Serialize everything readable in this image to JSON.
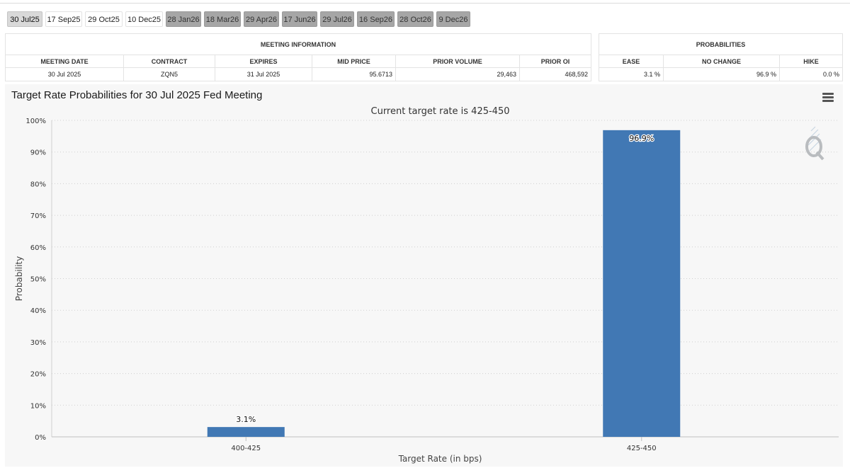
{
  "tabs": [
    {
      "label": "30 Jul25",
      "state": "active"
    },
    {
      "label": "17 Sep25",
      "state": "near"
    },
    {
      "label": "29 Oct25",
      "state": "near"
    },
    {
      "label": "10 Dec25",
      "state": "near"
    },
    {
      "label": "28 Jan26",
      "state": "far"
    },
    {
      "label": "18 Mar26",
      "state": "far"
    },
    {
      "label": "29 Apr26",
      "state": "far"
    },
    {
      "label": "17 Jun26",
      "state": "far"
    },
    {
      "label": "29 Jul26",
      "state": "far"
    },
    {
      "label": "16 Sep26",
      "state": "far"
    },
    {
      "label": "28 Oct26",
      "state": "far"
    },
    {
      "label": "9 Dec26",
      "state": "far"
    }
  ],
  "meeting_info": {
    "group_title": "MEETING INFORMATION",
    "headers": [
      "MEETING DATE",
      "CONTRACT",
      "EXPIRES",
      "MID PRICE",
      "PRIOR VOLUME",
      "PRIOR OI"
    ],
    "row": [
      "30 Jul 2025",
      "ZQN5",
      "31 Jul 2025",
      "95.6713",
      "29,463",
      "468,592"
    ]
  },
  "probabilities": {
    "group_title": "PROBABILITIES",
    "headers": [
      "EASE",
      "NO CHANGE",
      "HIKE"
    ],
    "row": [
      "3.1 %",
      "96.9 %",
      "0.0 %"
    ]
  },
  "colors": {
    "bar": "#4178b4",
    "grid": "#d0d0d0",
    "panel": "#f7f7f7"
  },
  "chart_data": {
    "type": "bar",
    "title": "Target Rate Probabilities for 30 Jul 2025 Fed Meeting",
    "subtitle": "Current target rate is 425-450",
    "xlabel": "Target Rate (in bps)",
    "ylabel": "Probability",
    "categories": [
      "400-425",
      "425-450"
    ],
    "values": [
      3.1,
      96.9
    ],
    "data_labels": [
      "3.1%",
      "96.9%"
    ],
    "ylim": [
      0,
      100
    ],
    "yticks": [
      0,
      10,
      20,
      30,
      40,
      50,
      60,
      70,
      80,
      90,
      100
    ],
    "ytick_labels": [
      "0%",
      "10%",
      "20%",
      "30%",
      "40%",
      "50%",
      "60%",
      "70%",
      "80%",
      "90%",
      "100%"
    ],
    "grid": true,
    "legend": "none"
  }
}
